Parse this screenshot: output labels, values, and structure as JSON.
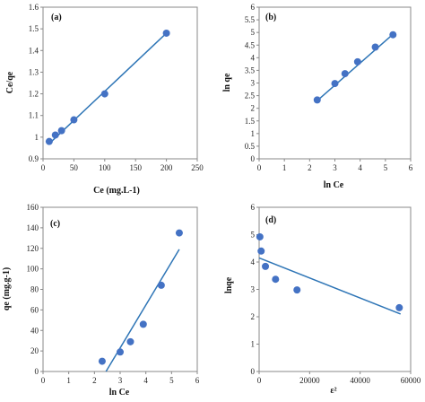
{
  "chart_data": [
    {
      "type": "scatter",
      "panel_label": "(a)",
      "xlabel": "Ce (mg.L-1)",
      "ylabel": "Ce/qe",
      "xlim": [
        0,
        250
      ],
      "ylim": [
        0.9,
        1.6
      ],
      "xticks": [
        "0",
        "50",
        "100",
        "150",
        "200",
        "250"
      ],
      "yticks": [
        "0.9",
        "1",
        "1.1",
        "1.2",
        "1.3",
        "1.4",
        "1.5",
        "1.6"
      ],
      "points": [
        [
          10,
          0.98
        ],
        [
          20,
          1.01
        ],
        [
          30,
          1.03
        ],
        [
          50,
          1.08
        ],
        [
          100,
          1.2
        ],
        [
          200,
          1.48
        ]
      ],
      "fit_line": [
        [
          10,
          0.97
        ],
        [
          200,
          1.48
        ]
      ],
      "marker_color": "#4472c4",
      "line_color": "#2e75b6"
    },
    {
      "type": "scatter",
      "panel_label": "(b)",
      "xlabel": "ln Ce",
      "ylabel": "ln qe",
      "xlim": [
        0,
        6
      ],
      "ylim": [
        0,
        6
      ],
      "xticks": [
        "0",
        "1",
        "2",
        "3",
        "4",
        "5",
        "6"
      ],
      "yticks": [
        "0",
        "0.5",
        "1",
        "1.5",
        "2",
        "2.5",
        "3",
        "3.5",
        "4",
        "4.5",
        "5",
        "5.5",
        "6"
      ],
      "points": [
        [
          2.3,
          2.33
        ],
        [
          3.0,
          2.98
        ],
        [
          3.4,
          3.37
        ],
        [
          3.9,
          3.84
        ],
        [
          4.6,
          4.42
        ],
        [
          5.3,
          4.91
        ]
      ],
      "fit_line": [
        [
          2.3,
          2.3
        ],
        [
          5.3,
          4.93
        ]
      ],
      "marker_color": "#4472c4",
      "line_color": "#2e75b6"
    },
    {
      "type": "scatter",
      "panel_label": "(c)",
      "xlabel": "ln Ce",
      "ylabel": "qe (mg.g-1)",
      "xlim": [
        0,
        6
      ],
      "ylim": [
        0,
        160
      ],
      "xticks": [
        "0",
        "1",
        "2",
        "3",
        "4",
        "5",
        "6"
      ],
      "yticks": [
        "0",
        "20",
        "40",
        "60",
        "80",
        "100",
        "120",
        "140",
        "160"
      ],
      "points": [
        [
          2.3,
          10
        ],
        [
          3.0,
          19
        ],
        [
          3.4,
          29
        ],
        [
          3.9,
          46
        ],
        [
          4.6,
          84
        ],
        [
          5.3,
          135
        ]
      ],
      "fit_line": [
        [
          2.45,
          0
        ],
        [
          5.3,
          119
        ]
      ],
      "marker_color": "#4472c4",
      "line_color": "#2e75b6"
    },
    {
      "type": "scatter",
      "panel_label": "(d)",
      "xlabel": "ε²",
      "ylabel": "lnqe",
      "xlim": [
        0,
        60000
      ],
      "ylim": [
        0,
        6
      ],
      "xticks": [
        "0",
        "20000",
        "40000",
        "60000"
      ],
      "yticks": [
        "0",
        "1",
        "2",
        "3",
        "4",
        "5",
        "6"
      ],
      "points": [
        [
          300,
          4.92
        ],
        [
          800,
          4.4
        ],
        [
          2500,
          3.84
        ],
        [
          6500,
          3.37
        ],
        [
          15000,
          2.98
        ],
        [
          55500,
          2.33
        ]
      ],
      "fit_line": [
        [
          0,
          4.15
        ],
        [
          56000,
          2.1
        ]
      ],
      "marker_color": "#4472c4",
      "line_color": "#2e75b6"
    }
  ]
}
